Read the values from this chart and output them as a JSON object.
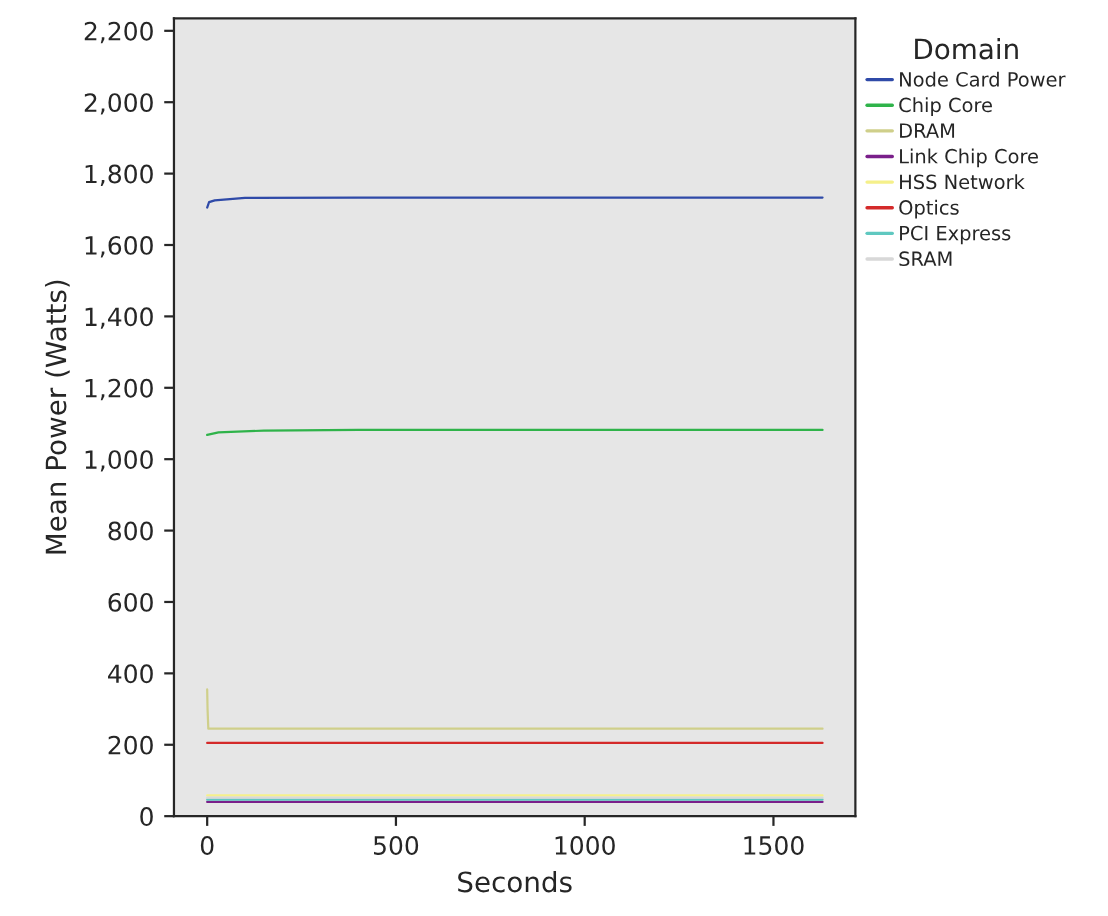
{
  "chart_data": {
    "type": "line",
    "xlabel": "Seconds",
    "ylabel": "Mean Power (Watts)",
    "legend_title": "Domain",
    "legend": "right",
    "grid": false,
    "xlim": [
      -88,
      1717
    ],
    "xticks": [
      0,
      500,
      1000,
      1500
    ],
    "ylim": [
      0,
      2235
    ],
    "yticks": [
      {
        "value": 0,
        "label": "0"
      },
      {
        "value": 200,
        "label": "200"
      },
      {
        "value": 400,
        "label": "400"
      },
      {
        "value": 600,
        "label": "600"
      },
      {
        "value": 800,
        "label": "800"
      },
      {
        "value": 1000,
        "label": "1,000"
      },
      {
        "value": 1200,
        "label": "1,200"
      },
      {
        "value": 1400,
        "label": "1,400"
      },
      {
        "value": 1600,
        "label": "1,600"
      },
      {
        "value": 1800,
        "label": "1,800"
      },
      {
        "value": 2000,
        "label": "2,000"
      },
      {
        "value": 2200,
        "label": "2,200"
      }
    ],
    "series": [
      {
        "name": "Node Card Power",
        "color": "#2f4aa8",
        "x": [
          0,
          5,
          20,
          100,
          400,
          800,
          1200,
          1630
        ],
        "values": [
          1705,
          1720,
          1725,
          1732,
          1733,
          1733,
          1733,
          1733
        ]
      },
      {
        "name": "Chip Core",
        "color": "#2fb34a",
        "x": [
          0,
          30,
          150,
          400,
          800,
          1200,
          1630
        ],
        "values": [
          1068,
          1075,
          1080,
          1082,
          1082,
          1082,
          1082
        ]
      },
      {
        "name": "DRAM",
        "color": "#cfcf8a",
        "x": [
          0,
          1,
          3,
          800,
          1630
        ],
        "values": [
          355,
          300,
          245,
          245,
          245
        ]
      },
      {
        "name": "Link Chip Core",
        "color": "#7a1f8a",
        "x": [
          0,
          800,
          1630
        ],
        "values": [
          40,
          40,
          40
        ]
      },
      {
        "name": "HSS Network",
        "color": "#f5f08a",
        "x": [
          0,
          800,
          1630
        ],
        "values": [
          58,
          58,
          58
        ]
      },
      {
        "name": "Optics",
        "color": "#d42a2a",
        "x": [
          0,
          800,
          1630
        ],
        "values": [
          205,
          205,
          205
        ]
      },
      {
        "name": "PCI Express",
        "color": "#5fc8c0",
        "x": [
          0,
          800,
          1630
        ],
        "values": [
          46,
          46,
          46
        ]
      },
      {
        "name": "SRAM",
        "color": "#d8d8d8",
        "x": [
          0,
          800,
          1630
        ],
        "values": [
          52,
          52,
          52
        ]
      }
    ]
  }
}
